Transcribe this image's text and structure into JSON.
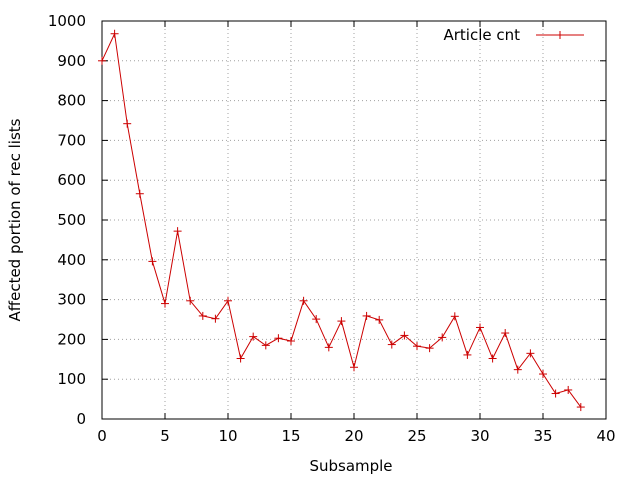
{
  "chart_data": {
    "type": "line",
    "title": "",
    "xlabel": "Subsample",
    "ylabel": "Affected portion of rec lists",
    "xlim": [
      0,
      40
    ],
    "ylim": [
      0,
      1000
    ],
    "xticks": [
      0,
      5,
      10,
      15,
      20,
      25,
      30,
      35,
      40
    ],
    "yticks": [
      0,
      100,
      200,
      300,
      400,
      500,
      600,
      700,
      800,
      900,
      1000
    ],
    "grid": true,
    "legend_position": "top-right",
    "series": [
      {
        "name": "Article cnt",
        "color": "#cc0000",
        "marker": "plus",
        "x": [
          0,
          1,
          2,
          3,
          4,
          5,
          6,
          7,
          8,
          9,
          10,
          11,
          12,
          13,
          14,
          15,
          16,
          17,
          18,
          19,
          20,
          21,
          22,
          23,
          24,
          25,
          26,
          27,
          28,
          29,
          30,
          31,
          32,
          33,
          34,
          35,
          36,
          37,
          38
        ],
        "y": [
          900,
          968,
          742,
          566,
          396,
          290,
          472,
          297,
          259,
          252,
          297,
          152,
          207,
          185,
          203,
          196,
          297,
          251,
          180,
          246,
          130,
          259,
          249,
          187,
          210,
          183,
          178,
          205,
          258,
          161,
          230,
          152,
          216,
          124,
          165,
          113,
          64,
          73,
          30
        ]
      }
    ]
  }
}
